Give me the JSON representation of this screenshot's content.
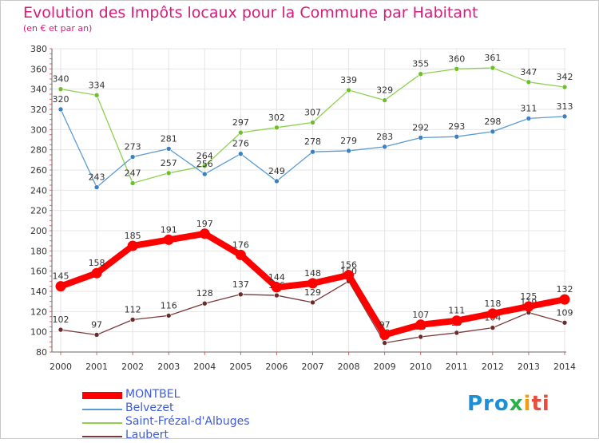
{
  "header": {
    "title": "Evolution des Impôts locaux pour la Commune par Habitant",
    "subtitle": "(en € et par an)"
  },
  "logo": {
    "p1": "Pro",
    "p2": "x",
    "p3": "i",
    "p4": "ti"
  },
  "chart_data": {
    "type": "line",
    "title": "Evolution des Impôts locaux pour la Commune par Habitant",
    "subtitle": "(en € et par an)",
    "xlabel": "",
    "ylabel": "",
    "ylim": [
      80,
      380
    ],
    "yticks": [
      80,
      100,
      120,
      140,
      160,
      180,
      200,
      220,
      240,
      260,
      280,
      300,
      320,
      340,
      360,
      380
    ],
    "grid": true,
    "legend_position": "bottom-left",
    "x": [
      "2000",
      "2001",
      "2002",
      "2003",
      "2004",
      "2005",
      "2006",
      "2007",
      "2008",
      "2009",
      "2010",
      "2011",
      "2012",
      "2013",
      "2014"
    ],
    "series": [
      {
        "name": "Saint-Frézal-d'Albuges",
        "color": "#8fd14f",
        "marker": "#6cbf2a",
        "values": [
          340,
          334,
          247,
          257,
          264,
          297,
          302,
          307,
          339,
          329,
          355,
          360,
          361,
          347,
          342
        ],
        "labels": [
          "340",
          "334",
          "247",
          "257",
          "264",
          "297",
          "302",
          "307",
          "339",
          "329",
          "355",
          "360",
          "361",
          "347",
          "342"
        ]
      },
      {
        "name": "Belvezet",
        "color": "#5a9bd4",
        "marker": "#3d7fbf",
        "values": [
          320,
          243,
          273,
          281,
          256,
          276,
          249,
          278,
          279,
          283,
          292,
          293,
          298,
          311,
          313
        ],
        "labels": [
          "320",
          "243",
          "273",
          "281",
          "256",
          "276",
          "249",
          "278",
          "279",
          "283",
          "292",
          "293",
          "298",
          "311",
          "313"
        ]
      },
      {
        "name": "Laubert",
        "color": "#7a3a3a",
        "marker": "#6b2b2b",
        "values": [
          102,
          97,
          112,
          116,
          128,
          137,
          136,
          129,
          150,
          89,
          95,
          99,
          104,
          119,
          109
        ],
        "labels": [
          "102",
          "97",
          "112",
          "116",
          "128",
          "137",
          "136",
          "129",
          "150",
          "89",
          "95",
          "99",
          "104",
          "119",
          "109"
        ]
      },
      {
        "name": "MONTBEL",
        "color": "#ff0000",
        "marker": "#ff0000",
        "values": [
          145,
          158,
          185,
          191,
          197,
          176,
          144,
          148,
          156,
          97,
          107,
          111,
          118,
          125,
          132
        ],
        "labels": [
          "145",
          "158",
          "185",
          "191",
          "197",
          "176",
          "144",
          "148",
          "156",
          "97",
          "107",
          "111",
          "118",
          "125",
          "132"
        ]
      }
    ]
  },
  "legend": [
    {
      "label": "MONTBEL",
      "color": "#ff0000",
      "thickness": 9
    },
    {
      "label": "Belvezet",
      "color": "#5a9bd4",
      "thickness": 2
    },
    {
      "label": "Saint-Frézal-d'Albuges",
      "color": "#8fd14f",
      "thickness": 2
    },
    {
      "label": "Laubert",
      "color": "#7a3a3a",
      "thickness": 2
    }
  ]
}
